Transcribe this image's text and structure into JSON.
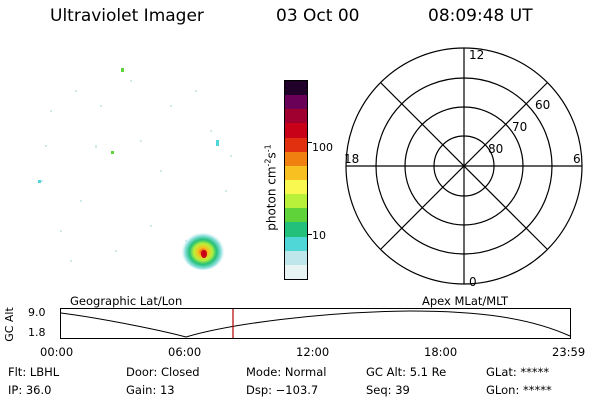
{
  "header": {
    "instrument": "Ultraviolet Imager",
    "date": "03 Oct 00",
    "time": "08:09:48 UT"
  },
  "colorbar": {
    "label_main": "photon cm",
    "label_exp1": "-2",
    "label_mid": "s",
    "label_exp2": "-1",
    "ticks": [
      "100",
      "10"
    ],
    "colors": [
      "#e8f4f4",
      "#bfe6ea",
      "#4fd6d6",
      "#22c07a",
      "#5fd33a",
      "#b8f03a",
      "#f8f850",
      "#f8c020",
      "#f08010",
      "#e03010",
      "#c80018",
      "#a00030",
      "#6a0058",
      "#200028"
    ]
  },
  "polar_plot": {
    "top_label": "12",
    "bottom_label": "0",
    "left_label": "18",
    "right_label": "6",
    "ring_labels": [
      "60",
      "70",
      "80"
    ]
  },
  "timeline": {
    "left_title": "Geographic Lat/Lon",
    "right_title": "Apex MLat/MLT",
    "ylabel": "GC Alt",
    "y_ticks": [
      "9.0",
      "1.8"
    ],
    "x_ticks": [
      "00:00",
      "06:00",
      "12:00",
      "18:00",
      "23:59"
    ],
    "current_time_marker": "08:09",
    "line_color": "#000000",
    "marker_color": "#b00000"
  },
  "info_row1": {
    "flt": "Flt: LBHL",
    "door": "Door: Closed",
    "mode": "Mode: Normal",
    "gcalt": "GC Alt: 5.1 Re",
    "glat": "GLat: *****"
  },
  "info_row2": {
    "ip": "IP: 36.0",
    "gain": "Gain: 13",
    "dsp": "Dsp: −103.7",
    "seq": "Seq: 39",
    "glon": "GLon: *****"
  }
}
